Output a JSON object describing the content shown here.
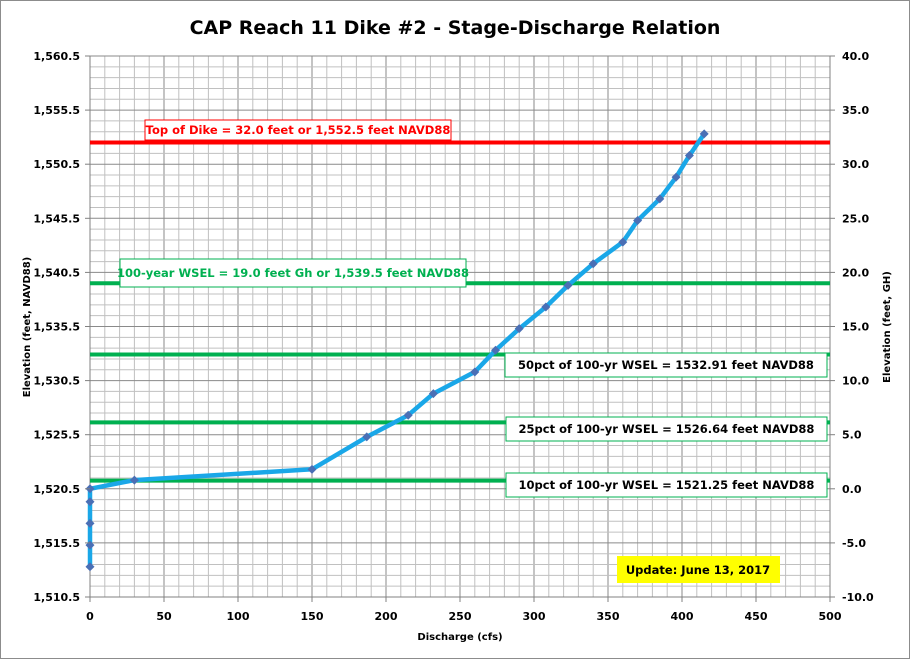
{
  "chart_data": {
    "type": "line",
    "title": "CAP Reach 11 Dike #2 - Stage-Discharge Relation",
    "xlabel": "Discharge  (cfs)",
    "ylabel": "Elevation  (feet, NAVD88)",
    "y2label": "Elevation  (feet, GH)",
    "xlim": [
      0,
      500
    ],
    "ylim": [
      1510.5,
      1560.5
    ],
    "y2lim": [
      -10.0,
      40.0
    ],
    "grid": true,
    "x_ticks": [
      "0",
      "50",
      "100",
      "150",
      "200",
      "250",
      "300",
      "350",
      "400",
      "450",
      "500"
    ],
    "y_ticks": [
      "1,510.5",
      "1,515.5",
      "1,520.5",
      "1,525.5",
      "1,530.5",
      "1,535.5",
      "1,540.5",
      "1,545.5",
      "1,550.5",
      "1,555.5",
      "1,560.5"
    ],
    "y2_ticks": [
      "-10.0",
      "-5.0",
      "0.0",
      "5.0",
      "10.0",
      "15.0",
      "20.0",
      "25.0",
      "30.0",
      "35.0",
      "40.0"
    ],
    "series": [
      {
        "name": "Stage-Discharge",
        "color": "#1aa7e8",
        "marker_color": "#4a6fb5",
        "x": [
          0,
          0,
          0,
          0,
          0,
          30,
          150,
          187,
          215,
          232,
          260,
          274,
          290,
          308,
          323,
          340,
          360,
          370,
          385,
          396,
          405,
          415
        ],
        "y": [
          1513.3,
          1515.3,
          1517.3,
          1519.3,
          1520.5,
          1521.3,
          1522.3,
          1525.3,
          1527.3,
          1529.3,
          1531.3,
          1533.3,
          1535.3,
          1537.3,
          1539.3,
          1541.3,
          1543.3,
          1545.3,
          1547.3,
          1549.3,
          1551.3,
          1553.3
        ]
      }
    ],
    "reference_lines": [
      {
        "name": "top-of-dike",
        "y": 1552.5,
        "color": "#ff0000",
        "label": "Top of Dike = 32.0  feet or 1,552.5  feet NAVD88"
      },
      {
        "name": "100-year-wsel",
        "y": 1539.5,
        "color": "#00b050",
        "label": "100-year WSEL = 19.0  feet Gh or 1,539.5  feet NAVD88"
      },
      {
        "name": "50pct-wsel",
        "y": 1532.91,
        "color": "#00b050",
        "label": "50pct of 100-yr WSEL = 1532.91  feet NAVD88"
      },
      {
        "name": "25pct-wsel",
        "y": 1526.64,
        "color": "#00b050",
        "label": "25pct of 100-yr WSEL = 1526.64  feet NAVD88"
      },
      {
        "name": "10pct-wsel",
        "y": 1521.25,
        "color": "#00b050",
        "label": "10pct of 100-yr WSEL = 1521.25  feet NAVD88"
      }
    ],
    "annotations": [
      {
        "text": "Update: June 13, 2017",
        "background": "#ffff00",
        "position": "bottom-right"
      }
    ]
  }
}
